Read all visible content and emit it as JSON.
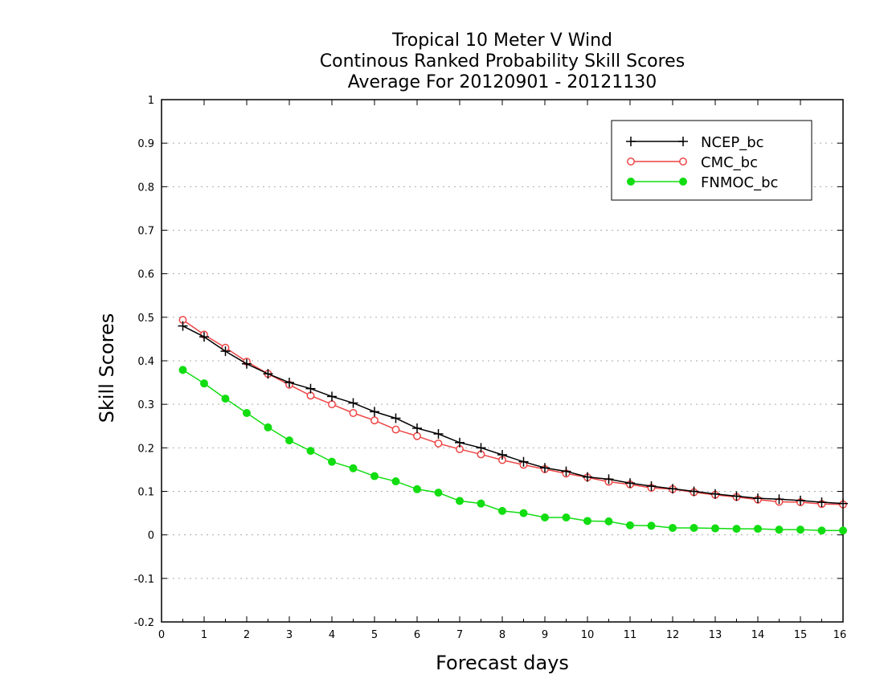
{
  "chart_data": {
    "type": "line",
    "title_lines": [
      "Tropical 10 Meter V Wind",
      "Continous Ranked Probability Skill Scores",
      "Average For 20120901 - 20121130"
    ],
    "xlabel": "Forecast days",
    "ylabel": "Skill Scores",
    "xlim": [
      0,
      16
    ],
    "ylim": [
      -0.2,
      1
    ],
    "x_ticks": [
      0,
      1,
      2,
      3,
      4,
      5,
      6,
      7,
      8,
      9,
      10,
      11,
      12,
      13,
      14,
      15,
      16
    ],
    "x_tick_labels": [
      "0",
      "1",
      "2",
      "3",
      "4",
      "5",
      "6",
      "7",
      "8",
      "9",
      "10",
      "11",
      "12",
      "13",
      "14",
      "15",
      "16"
    ],
    "y_ticks": [
      -0.2,
      -0.1,
      0,
      0.1,
      0.2,
      0.3,
      0.4,
      0.5,
      0.6,
      0.7,
      0.8,
      0.9,
      1
    ],
    "y_tick_labels": [
      "-0.2",
      "-0.1",
      "0",
      "0.1",
      "0.2",
      "0.3",
      "0.4",
      "0.5",
      "0.6",
      "0.7",
      "0.8",
      "0.9",
      "1"
    ],
    "grid": "horizontal dotted",
    "legend_position": "top-right",
    "x": [
      0.5,
      1,
      1.5,
      2,
      2.5,
      3,
      3.5,
      4,
      4.5,
      5,
      5.5,
      6,
      6.5,
      7,
      7.5,
      8,
      8.5,
      9,
      9.5,
      10,
      10.5,
      11,
      11.5,
      12,
      12.5,
      13,
      13.5,
      14,
      14.5,
      15,
      15.5,
      16
    ],
    "series": [
      {
        "name": "NCEP_bc",
        "color": "#000000",
        "marker": "plus",
        "values": [
          0.48,
          0.455,
          0.422,
          0.393,
          0.37,
          0.35,
          0.336,
          0.318,
          0.303,
          0.283,
          0.268,
          0.245,
          0.232,
          0.212,
          0.2,
          0.184,
          0.168,
          0.154,
          0.146,
          0.133,
          0.128,
          0.119,
          0.112,
          0.106,
          0.1,
          0.094,
          0.089,
          0.084,
          0.082,
          0.079,
          0.075,
          0.072
        ]
      },
      {
        "name": "CMC_bc",
        "color": "#ee4444",
        "marker": "open-circle",
        "values": [
          0.494,
          0.46,
          0.43,
          0.398,
          0.37,
          0.345,
          0.32,
          0.3,
          0.28,
          0.263,
          0.242,
          0.227,
          0.21,
          0.197,
          0.185,
          0.172,
          0.161,
          0.151,
          0.141,
          0.132,
          0.122,
          0.116,
          0.108,
          0.105,
          0.098,
          0.092,
          0.087,
          0.081,
          0.076,
          0.075,
          0.071,
          0.07
        ]
      },
      {
        "name": "FNMOC_bc",
        "color": "#11dd11",
        "marker": "filled-circle",
        "values": [
          0.379,
          0.348,
          0.313,
          0.28,
          0.247,
          0.217,
          0.193,
          0.168,
          0.153,
          0.135,
          0.123,
          0.105,
          0.097,
          0.078,
          0.072,
          0.055,
          0.05,
          0.04,
          0.04,
          0.032,
          0.031,
          0.022,
          0.021,
          0.016,
          0.016,
          0.015,
          0.014,
          0.014,
          0.012,
          0.012,
          0.01,
          0.01
        ]
      }
    ]
  }
}
